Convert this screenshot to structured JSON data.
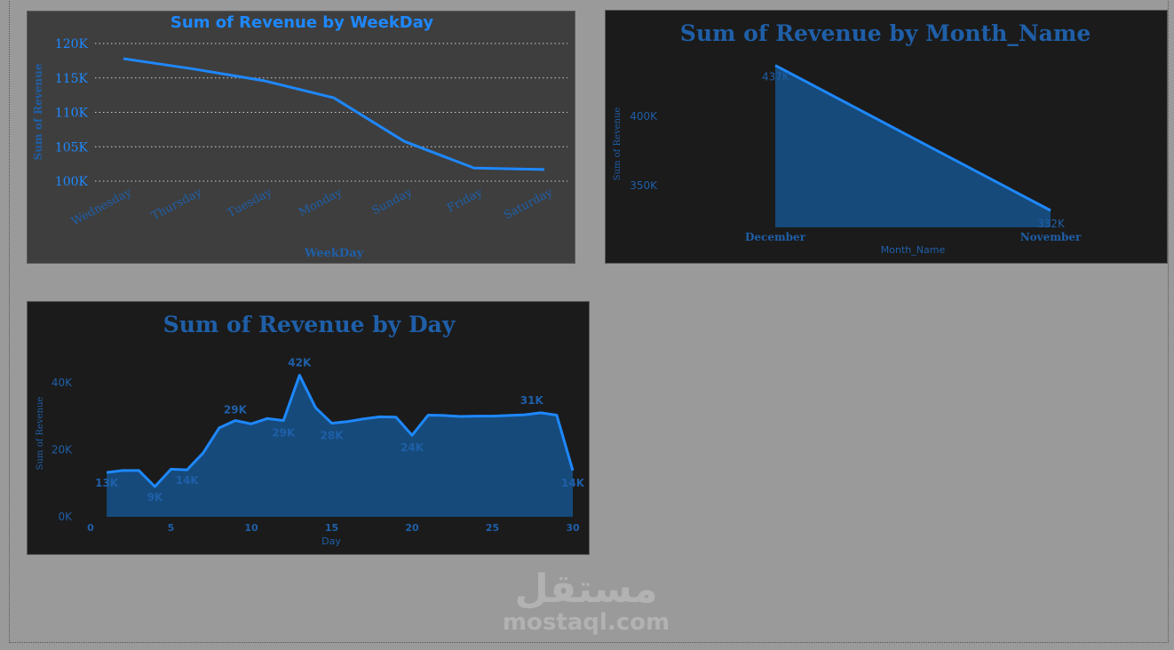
{
  "chart_data": [
    {
      "type": "line",
      "title": "Sum of Revenue by WeekDay",
      "xlabel": "WeekDay",
      "ylabel": "Sum of Revenue",
      "categories": [
        "Wednesday",
        "Thursday",
        "Tuesday",
        "Monday",
        "Sunday",
        "Friday",
        "Saturday"
      ],
      "values": [
        117800,
        116300,
        114600,
        112100,
        105800,
        101900,
        101700
      ],
      "ylim": [
        100000,
        120000
      ],
      "yticks": [
        100000,
        105000,
        110000,
        115000,
        120000
      ],
      "ytick_labels": [
        "100K",
        "105K",
        "110K",
        "115K",
        "120K"
      ],
      "grid": true,
      "line_color": "#1e88ff"
    },
    {
      "type": "area",
      "title": "Sum of Revenue by Month_Name",
      "xlabel": "Month_Name",
      "ylabel": "Sum of Revenue",
      "categories": [
        "December",
        "November"
      ],
      "values": [
        437000,
        332000
      ],
      "data_labels": [
        "437K",
        "332K"
      ],
      "ylim": [
        310000,
        440000
      ],
      "yticks": [
        350000,
        400000
      ],
      "ytick_labels": [
        "350K",
        "400K"
      ],
      "grid": false,
      "line_color": "#1e88ff",
      "fill_color": "#164a7a"
    },
    {
      "type": "area",
      "title": "Sum of Revenue by Day",
      "xlabel": "Day",
      "ylabel": "Sum of Revenue",
      "x": [
        1,
        2,
        3,
        4,
        5,
        6,
        7,
        8,
        9,
        10,
        11,
        12,
        13,
        14,
        15,
        16,
        17,
        18,
        19,
        20,
        21,
        22,
        23,
        24,
        25,
        26,
        27,
        28,
        29,
        30
      ],
      "values": [
        13200,
        13800,
        13800,
        9000,
        14200,
        14000,
        19000,
        26500,
        28700,
        27700,
        29300,
        28700,
        42200,
        32500,
        27900,
        28400,
        29200,
        29800,
        29700,
        24300,
        30300,
        30200,
        29900,
        30000,
        30000,
        30200,
        30400,
        31000,
        30300,
        13800
      ],
      "data_labels": [
        {
          "x": 1,
          "label": "13K"
        },
        {
          "x": 4,
          "label": "9K"
        },
        {
          "x": 6,
          "label": "14K"
        },
        {
          "x": 9,
          "label": "29K"
        },
        {
          "x": 12,
          "label": "29K"
        },
        {
          "x": 13,
          "label": "42K"
        },
        {
          "x": 15,
          "label": "28K"
        },
        {
          "x": 20,
          "label": "24K"
        },
        {
          "x": 28,
          "label": "31K"
        },
        {
          "x": 30,
          "label": "14K"
        }
      ],
      "xlim": [
        0,
        30
      ],
      "xticks": [
        0,
        5,
        10,
        15,
        20,
        25,
        30
      ],
      "ylim": [
        0,
        45000
      ],
      "yticks": [
        0,
        20000,
        40000
      ],
      "ytick_labels": [
        "0K",
        "20K",
        "40K"
      ],
      "grid": false,
      "line_color": "#1e88ff",
      "fill_color": "#164a7a"
    }
  ],
  "watermark": {
    "arabic": "مستقل",
    "latin": "mostaql.com"
  }
}
